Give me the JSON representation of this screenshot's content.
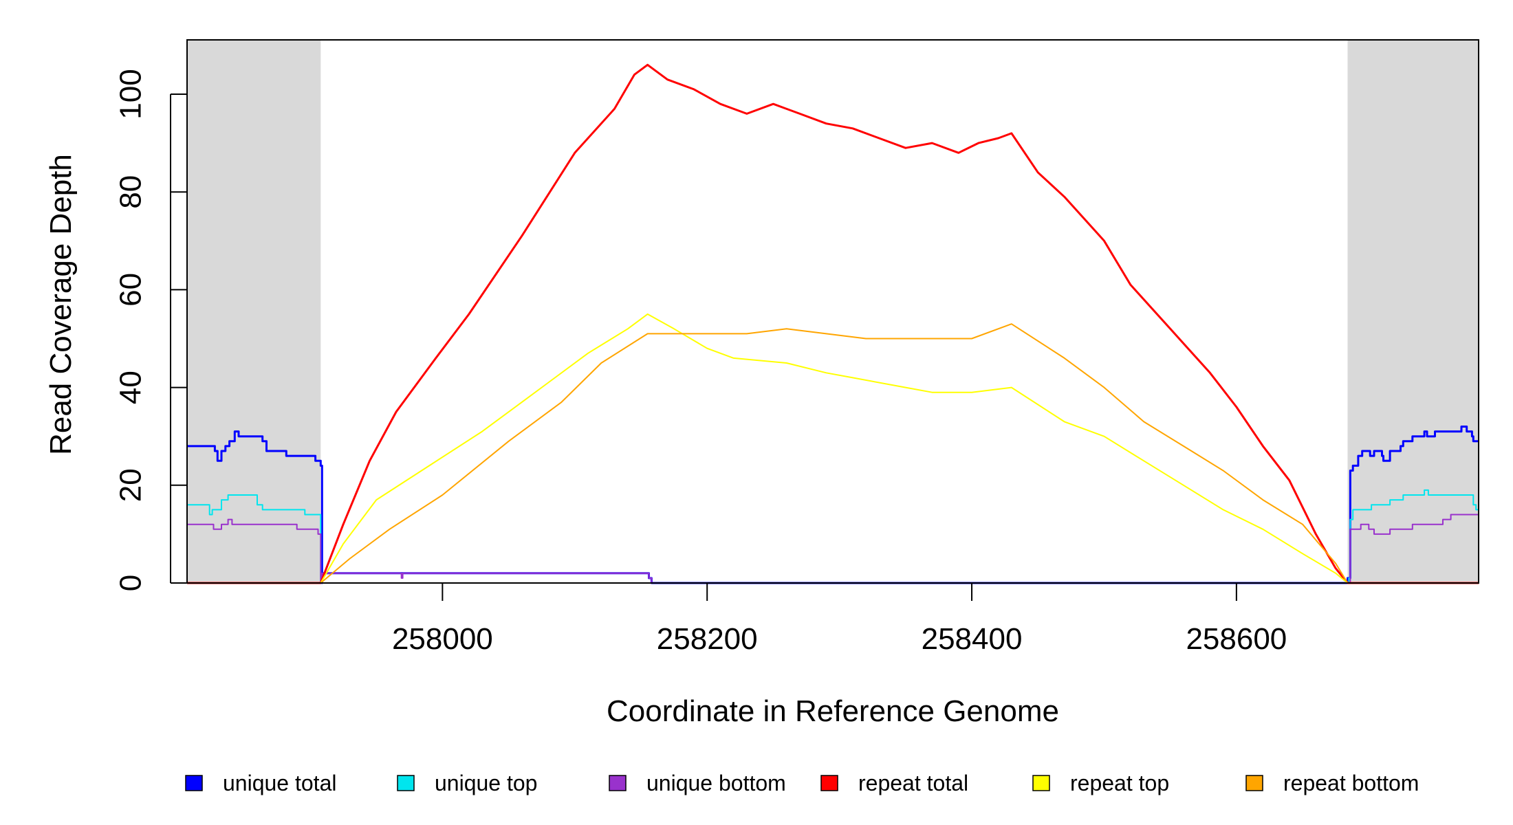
{
  "chart_data": {
    "type": "line",
    "title": "",
    "xlabel": "Coordinate in Reference Genome",
    "ylabel": "Read Coverage Depth",
    "xlim": [
      257807,
      258783
    ],
    "ylim": [
      0,
      110
    ],
    "x_ticks": [
      258000,
      258200,
      258400,
      258600
    ],
    "y_ticks": [
      0,
      20,
      40,
      60,
      80,
      100
    ],
    "x_tick_labels": [
      "258000",
      "258200",
      "258400",
      "258600"
    ],
    "y_tick_labels": [
      "0",
      "20",
      "40",
      "60",
      "80",
      "100"
    ],
    "grid": false,
    "legend_position": "bottom",
    "shaded_regions": [
      {
        "x_start": 257807,
        "x_end": 257908,
        "color": "#d9d9d9"
      },
      {
        "x_start": 258684,
        "x_end": 258783,
        "color": "#d9d9d9"
      }
    ],
    "series": [
      {
        "name": "unique total",
        "color": "#0000ff",
        "style": "step",
        "points": [
          [
            257807,
            28
          ],
          [
            257826,
            28
          ],
          [
            257828,
            27
          ],
          [
            257830,
            25
          ],
          [
            257833,
            27
          ],
          [
            257836,
            28
          ],
          [
            257839,
            29
          ],
          [
            257843,
            31
          ],
          [
            257846,
            30
          ],
          [
            257858,
            30
          ],
          [
            257864,
            29
          ],
          [
            257867,
            27
          ],
          [
            257878,
            27
          ],
          [
            257882,
            26
          ],
          [
            257903,
            26
          ],
          [
            257904,
            25
          ],
          [
            257906,
            25
          ],
          [
            257908,
            24
          ],
          [
            257909,
            0
          ],
          [
            257909,
            2
          ],
          [
            258152,
            2
          ],
          [
            258156,
            1
          ],
          [
            258158,
            0
          ],
          [
            258680,
            0
          ],
          [
            258684,
            1
          ],
          [
            258686,
            23
          ],
          [
            258688,
            24
          ],
          [
            258691,
            24
          ],
          [
            258692,
            26
          ],
          [
            258695,
            27
          ],
          [
            258701,
            26
          ],
          [
            258704,
            27
          ],
          [
            258710,
            26
          ],
          [
            258711,
            25
          ],
          [
            258716,
            27
          ],
          [
            258724,
            28
          ],
          [
            258726,
            29
          ],
          [
            258733,
            30
          ],
          [
            258742,
            31
          ],
          [
            258744,
            30
          ],
          [
            258750,
            31
          ],
          [
            258770,
            32
          ],
          [
            258774,
            31
          ],
          [
            258778,
            30
          ],
          [
            258779,
            29
          ],
          [
            258783,
            29
          ]
        ]
      },
      {
        "name": "unique top",
        "color": "#00e5ee",
        "style": "step",
        "points": [
          [
            257807,
            16
          ],
          [
            257822,
            16
          ],
          [
            257824,
            14
          ],
          [
            257826,
            15
          ],
          [
            257833,
            17
          ],
          [
            257838,
            18
          ],
          [
            257856,
            18
          ],
          [
            257860,
            16
          ],
          [
            257864,
            15
          ],
          [
            257892,
            15
          ],
          [
            257896,
            14
          ],
          [
            257906,
            14
          ],
          [
            257908,
            0
          ],
          [
            258683,
            0
          ],
          [
            258685,
            1
          ],
          [
            258686,
            13
          ],
          [
            258688,
            15
          ],
          [
            258702,
            16
          ],
          [
            258712,
            16
          ],
          [
            258716,
            17
          ],
          [
            258726,
            18
          ],
          [
            258740,
            18
          ],
          [
            258742,
            19
          ],
          [
            258745,
            18
          ],
          [
            258775,
            18
          ],
          [
            258779,
            16
          ],
          [
            258781,
            15
          ],
          [
            258783,
            15
          ]
        ]
      },
      {
        "name": "unique bottom",
        "color": "#9932cc",
        "style": "step",
        "points": [
          [
            257807,
            12
          ],
          [
            257825,
            12
          ],
          [
            257827,
            11
          ],
          [
            257833,
            12
          ],
          [
            257837,
            12
          ],
          [
            257838,
            13
          ],
          [
            257841,
            12
          ],
          [
            257886,
            12
          ],
          [
            257890,
            11
          ],
          [
            257905,
            11
          ],
          [
            257906,
            10
          ],
          [
            257908,
            0
          ],
          [
            257909,
            2
          ],
          [
            257968,
            2
          ],
          [
            257969,
            1
          ],
          [
            257970,
            2
          ],
          [
            258151,
            2
          ],
          [
            258156,
            1
          ],
          [
            258158,
            0
          ],
          [
            258683,
            0
          ],
          [
            258686,
            11
          ],
          [
            258689,
            11
          ],
          [
            258694,
            12
          ],
          [
            258700,
            11
          ],
          [
            258704,
            10
          ],
          [
            258710,
            10
          ],
          [
            258716,
            11
          ],
          [
            258726,
            11
          ],
          [
            258733,
            12
          ],
          [
            258756,
            13
          ],
          [
            258762,
            14
          ],
          [
            258783,
            14
          ]
        ]
      },
      {
        "name": "repeat total",
        "color": "#ff0000",
        "style": "line",
        "points": [
          [
            257807,
            0
          ],
          [
            257908,
            0
          ],
          [
            257925,
            12
          ],
          [
            257945,
            25
          ],
          [
            257965,
            35
          ],
          [
            257995,
            46
          ],
          [
            258020,
            55
          ],
          [
            258060,
            71
          ],
          [
            258100,
            88
          ],
          [
            258130,
            97
          ],
          [
            258145,
            104
          ],
          [
            258155,
            106
          ],
          [
            258170,
            103
          ],
          [
            258190,
            101
          ],
          [
            258210,
            98
          ],
          [
            258230,
            96
          ],
          [
            258250,
            98
          ],
          [
            258270,
            96
          ],
          [
            258290,
            94
          ],
          [
            258310,
            93
          ],
          [
            258330,
            91
          ],
          [
            258350,
            89
          ],
          [
            258370,
            90
          ],
          [
            258390,
            88
          ],
          [
            258405,
            90
          ],
          [
            258420,
            91
          ],
          [
            258430,
            92
          ],
          [
            258450,
            84
          ],
          [
            258470,
            79
          ],
          [
            258500,
            70
          ],
          [
            258520,
            61
          ],
          [
            258550,
            52
          ],
          [
            258580,
            43
          ],
          [
            258600,
            36
          ],
          [
            258620,
            28
          ],
          [
            258640,
            21
          ],
          [
            258660,
            10
          ],
          [
            258675,
            3
          ],
          [
            258684,
            0
          ],
          [
            258783,
            0
          ]
        ]
      },
      {
        "name": "repeat top",
        "color": "#ffff00",
        "style": "line",
        "points": [
          [
            257807,
            0
          ],
          [
            257908,
            0
          ],
          [
            257925,
            8
          ],
          [
            257950,
            17
          ],
          [
            257990,
            24
          ],
          [
            258030,
            31
          ],
          [
            258080,
            41
          ],
          [
            258110,
            47
          ],
          [
            258140,
            52
          ],
          [
            258155,
            55
          ],
          [
            258175,
            52
          ],
          [
            258200,
            48
          ],
          [
            258220,
            46
          ],
          [
            258260,
            45
          ],
          [
            258290,
            43
          ],
          [
            258310,
            42
          ],
          [
            258350,
            40
          ],
          [
            258370,
            39
          ],
          [
            258400,
            39
          ],
          [
            258430,
            40
          ],
          [
            258470,
            33
          ],
          [
            258500,
            30
          ],
          [
            258530,
            25
          ],
          [
            258560,
            20
          ],
          [
            258590,
            15
          ],
          [
            258620,
            11
          ],
          [
            258650,
            6
          ],
          [
            258675,
            2
          ],
          [
            258684,
            0
          ],
          [
            258783,
            0
          ]
        ]
      },
      {
        "name": "repeat bottom",
        "color": "#ffa500",
        "style": "line",
        "points": [
          [
            257807,
            0
          ],
          [
            257908,
            0
          ],
          [
            257930,
            5
          ],
          [
            257960,
            11
          ],
          [
            258000,
            18
          ],
          [
            258050,
            29
          ],
          [
            258090,
            37
          ],
          [
            258120,
            45
          ],
          [
            258155,
            51
          ],
          [
            258190,
            51
          ],
          [
            258230,
            51
          ],
          [
            258260,
            52
          ],
          [
            258290,
            51
          ],
          [
            258320,
            50
          ],
          [
            258370,
            50
          ],
          [
            258400,
            50
          ],
          [
            258430,
            53
          ],
          [
            258470,
            46
          ],
          [
            258500,
            40
          ],
          [
            258530,
            33
          ],
          [
            258560,
            28
          ],
          [
            258590,
            23
          ],
          [
            258620,
            17
          ],
          [
            258650,
            12
          ],
          [
            258675,
            4
          ],
          [
            258684,
            0
          ],
          [
            258783,
            0
          ]
        ]
      }
    ]
  }
}
